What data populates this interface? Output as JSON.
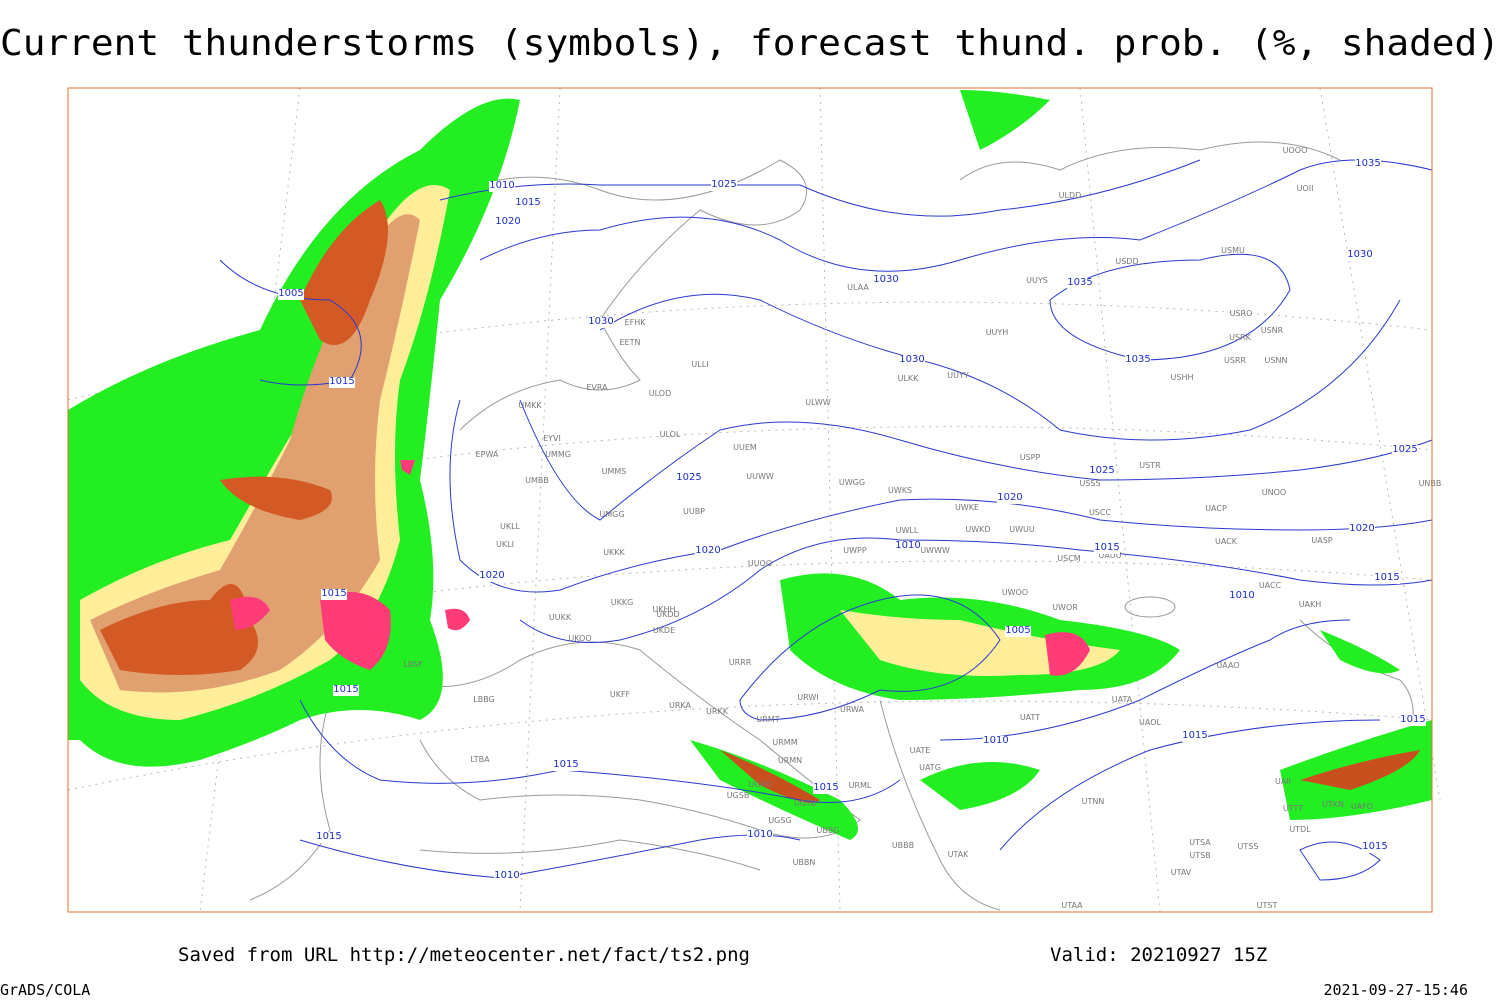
{
  "title": "Current thunderstorms (symbols), forecast thund. prob. (%, shaded)",
  "footer": {
    "source": "Saved from URL http://meteocenter.net/fact/ts2.png",
    "valid": "Valid: 20210927 15Z",
    "software": "GrADS/COLA",
    "timestamp": "2021-09-27-15:46"
  },
  "stations": [
    "EFHK",
    "EETN",
    "ULLI",
    "EVRA",
    "ULOD",
    "UMKK",
    "ULOL",
    "EYVI",
    "UMMG",
    "EPWA",
    "UMMS",
    "UMGG",
    "UMBB",
    "UUEM",
    "UUWW",
    "UUBP",
    "UKLL",
    "UKLI",
    "UKKK",
    "UUOO",
    "UKHH",
    "UKKG",
    "UKDD",
    "UKDE",
    "ULAA",
    "ULKK",
    "UUYY",
    "ULWW",
    "UWGG",
    "UWKS",
    "UWKE",
    "UWKD",
    "UWUU",
    "UWWW",
    "UWPP",
    "UWLL",
    "UUYH",
    "UUYS",
    "USDD",
    "USMU",
    "USRO",
    "USRK",
    "USNR",
    "USRR",
    "USNN",
    "USHH",
    "USPP",
    "USTR",
    "USSS",
    "USCC",
    "USCM",
    "UAUU",
    "UACP",
    "UACK",
    "UASP",
    "UNOO",
    "UNBB",
    "UOOO",
    "UOII",
    "ULDD",
    "UWOO",
    "UWOR",
    "UATA",
    "UAOL",
    "UAAO",
    "UACC",
    "UAKH",
    "UATT",
    "UTNN",
    "UTAK",
    "UATE",
    "UATG",
    "UBBB",
    "UBBG",
    "UGTB",
    "UGSB",
    "UGKO",
    "URML",
    "URMN",
    "URMM",
    "URMT",
    "URWI",
    "URWA",
    "URRR",
    "UKFF",
    "URKA",
    "URKK",
    "UKOO",
    "UUKK",
    "LBBG",
    "LBSF",
    "LTBA",
    "UGSG",
    "UBBN",
    "UTSB",
    "UTSS",
    "UTSA",
    "UTAV",
    "UTAA",
    "UTST",
    "UTDL",
    "UAII",
    "UTTT",
    "UTKN",
    "UAFO"
  ],
  "isobar_labels": [
    "1010",
    "1015",
    "1020",
    "1005",
    "1015",
    "1025",
    "1030",
    "1030",
    "1030",
    "1035",
    "1035",
    "1035",
    "1030",
    "1025",
    "1025",
    "1025",
    "1020",
    "1020",
    "1015",
    "1015",
    "1020",
    "1020",
    "1010",
    "1010",
    "1005",
    "1015",
    "1015",
    "1015",
    "1015",
    "1010",
    "1010",
    "1015",
    "1015",
    "1015",
    "1015",
    "1010"
  ]
}
